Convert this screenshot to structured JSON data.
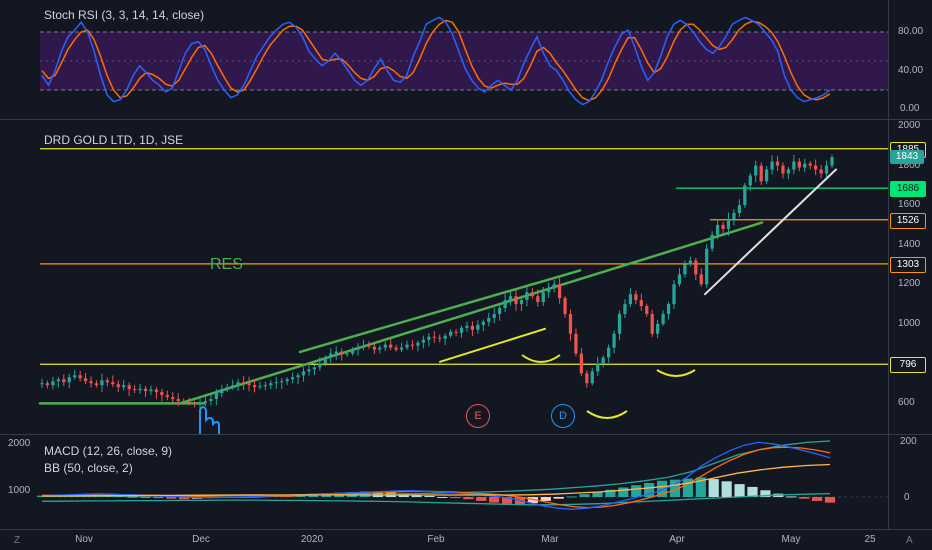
{
  "stoch": {
    "title": "Stoch RSI (3, 3, 14, 14, close)",
    "ticks": [
      "80.00",
      "40.00",
      "0.00"
    ],
    "k": [
      35,
      25,
      40,
      60,
      75,
      82,
      90,
      80,
      60,
      35,
      15,
      8,
      10,
      20,
      35,
      45,
      38,
      30,
      25,
      18,
      22,
      40,
      58,
      68,
      70,
      62,
      45,
      30,
      20,
      12,
      15,
      25,
      40,
      55,
      65,
      75,
      82,
      88,
      90,
      85,
      75,
      60,
      52,
      45,
      50,
      58,
      50,
      40,
      30,
      25,
      30,
      42,
      52,
      40,
      30,
      28,
      35,
      55,
      70,
      88,
      92,
      95,
      90,
      78,
      60,
      42,
      30,
      22,
      18,
      25,
      30,
      25,
      20,
      30,
      48,
      62,
      75,
      58,
      45,
      40,
      30,
      18,
      10,
      5,
      8,
      18,
      32,
      50,
      65,
      78,
      82,
      65,
      45,
      30,
      38,
      55,
      75,
      88,
      92,
      88,
      80,
      70,
      62,
      58,
      65,
      75,
      88,
      92,
      95,
      92,
      88,
      80,
      72,
      60,
      35,
      20,
      12,
      8,
      10,
      12,
      15,
      20
    ],
    "d": [
      40,
      32,
      35,
      48,
      62,
      72,
      80,
      82,
      72,
      55,
      35,
      20,
      12,
      14,
      22,
      32,
      38,
      36,
      32,
      26,
      24,
      30,
      42,
      54,
      64,
      66,
      58,
      45,
      33,
      22,
      18,
      20,
      30,
      42,
      55,
      66,
      74,
      82,
      86,
      86,
      82,
      72,
      62,
      52,
      50,
      52,
      52,
      46,
      38,
      32,
      30,
      34,
      42,
      44,
      40,
      34,
      32,
      38,
      52,
      68,
      80,
      88,
      92,
      90,
      80,
      62,
      45,
      32,
      24,
      22,
      25,
      27,
      26,
      26,
      32,
      45,
      60,
      64,
      58,
      48,
      40,
      30,
      20,
      12,
      9,
      12,
      20,
      32,
      48,
      62,
      74,
      74,
      62,
      48,
      38,
      42,
      54,
      70,
      82,
      88,
      88,
      82,
      74,
      66,
      62,
      64,
      72,
      82,
      88,
      91,
      90,
      86,
      80,
      70,
      55,
      38,
      24,
      15,
      11,
      10,
      12,
      16
    ]
  },
  "price": {
    "title": "DRD GOLD LTD, 1D, JSE",
    "res_label": "RES",
    "ticks": [
      "2000",
      "1800",
      "1600",
      "1400",
      "1200",
      "1000",
      "800",
      "600"
    ],
    "levels": [
      {
        "value": 1885,
        "label": "1885",
        "color": "#e6e62a",
        "text_color": "#131722"
      },
      {
        "value": 1686,
        "label": "1686",
        "color": "#00e676",
        "text_color": "#131722"
      },
      {
        "value": 1526,
        "label": "1526",
        "color": "#ff9800",
        "text_color": "#131722"
      },
      {
        "value": 1303,
        "label": "1303",
        "color": "#ff9800",
        "text_color": "#131722"
      },
      {
        "value": 796,
        "label": "796",
        "color": "#e6e62a",
        "text_color": "#131722"
      }
    ],
    "last": {
      "label": "1843",
      "value": 1843,
      "color": "#26a69a"
    },
    "closes": [
      700,
      690,
      710,
      720,
      705,
      730,
      740,
      725,
      710,
      700,
      690,
      715,
      705,
      695,
      680,
      690,
      670,
      665,
      672,
      660,
      668,
      655,
      640,
      630,
      620,
      610,
      605,
      600,
      598,
      602,
      610,
      620,
      650,
      670,
      680,
      690,
      705,
      700,
      690,
      680,
      685,
      690,
      700,
      705,
      710,
      720,
      730,
      740,
      760,
      770,
      780,
      800,
      830,
      850,
      860,
      845,
      850,
      870,
      880,
      890,
      885,
      870,
      880,
      895,
      880,
      870,
      880,
      895,
      890,
      905,
      920,
      935,
      930,
      925,
      940,
      960,
      955,
      980,
      990,
      970,
      995,
      1010,
      1030,
      1050,
      1080,
      1120,
      1140,
      1100,
      1120,
      1160,
      1140,
      1110,
      1160,
      1180,
      1200,
      1130,
      1050,
      950,
      850,
      750,
      700,
      760,
      800,
      830,
      880,
      950,
      1050,
      1100,
      1150,
      1120,
      1090,
      1050,
      950,
      1000,
      1050,
      1100,
      1200,
      1250,
      1300,
      1320,
      1250,
      1200,
      1380,
      1450,
      1500,
      1480,
      1530,
      1560,
      1600,
      1700,
      1750,
      1800,
      1720,
      1780,
      1820,
      1800,
      1760,
      1780,
      1820,
      1790,
      1810,
      1800,
      1780,
      1760,
      1800,
      1843
    ],
    "candle_colors_seed": 7
  },
  "macd": {
    "title": "MACD (12, 26, close, 9)",
    "title2": "BB (50, close, 2)",
    "left_ticks": [
      "2000",
      "1000"
    ],
    "right_ticks": [
      "200",
      "0"
    ],
    "hist": [
      5,
      4,
      6,
      8,
      7,
      6,
      4,
      2,
      -2,
      -4,
      -6,
      -8,
      -6,
      -4,
      -2,
      0,
      2,
      4,
      6,
      8,
      10,
      12,
      14,
      16,
      18,
      20,
      18,
      16,
      12,
      8,
      4,
      0,
      -4,
      -8,
      -14,
      -20,
      -24,
      -28,
      -22,
      -14,
      -6,
      2,
      10,
      18,
      26,
      34,
      42,
      50,
      58,
      62,
      66,
      70,
      64,
      56,
      46,
      36,
      24,
      12,
      2,
      -6,
      -14,
      -20
    ],
    "macd_line": [
      5,
      6,
      8,
      10,
      11,
      10,
      8,
      6,
      4,
      2,
      0,
      -2,
      -2,
      -1,
      0,
      2,
      4,
      6,
      8,
      10,
      12,
      14,
      16,
      18,
      20,
      22,
      22,
      20,
      18,
      14,
      10,
      6,
      0,
      -8,
      -20,
      -32,
      -40,
      -44,
      -40,
      -32,
      -20,
      -8,
      6,
      20,
      40,
      70,
      110,
      140,
      165,
      185,
      195,
      190,
      180,
      168,
      155,
      140
    ],
    "signal_line": [
      6,
      6,
      7,
      8,
      9,
      9,
      8,
      7,
      6,
      5,
      3,
      1,
      0,
      -1,
      -1,
      0,
      2,
      3,
      5,
      7,
      9,
      11,
      13,
      15,
      17,
      19,
      20,
      20,
      19,
      17,
      14,
      11,
      8,
      2,
      -6,
      -16,
      -26,
      -34,
      -38,
      -36,
      -30,
      -20,
      -8,
      6,
      22,
      44,
      74,
      104,
      130,
      152,
      168,
      176,
      178,
      175,
      168,
      158
    ],
    "bb_upper": [
      2,
      2,
      2,
      3,
      3,
      4,
      4,
      5,
      5,
      6,
      6,
      7,
      8,
      8,
      9,
      10,
      12,
      14,
      16,
      18,
      20,
      24,
      28,
      34,
      40,
      48,
      58,
      70,
      90,
      120,
      150,
      170,
      185,
      195,
      200
    ],
    "bb_lower": [
      -15,
      -15,
      -14,
      -14,
      -13,
      -13,
      -12,
      -12,
      -11,
      -11,
      -12,
      -12,
      -13,
      -14,
      -15,
      -16,
      -18,
      -20,
      -22,
      -24,
      -26,
      -28,
      -28,
      -26,
      -24,
      -20,
      -16,
      -12,
      -8,
      -4,
      0,
      4,
      8,
      10,
      12
    ]
  },
  "time_axis": [
    "Nov",
    "Dec",
    "2020",
    "Feb",
    "Mar",
    "Apr",
    "May",
    "25"
  ],
  "corners": {
    "left": "Z",
    "right": "A"
  },
  "markers": [
    {
      "label": "E",
      "color": "#ef5350"
    },
    {
      "label": "D",
      "color": "#2196f3"
    }
  ]
}
